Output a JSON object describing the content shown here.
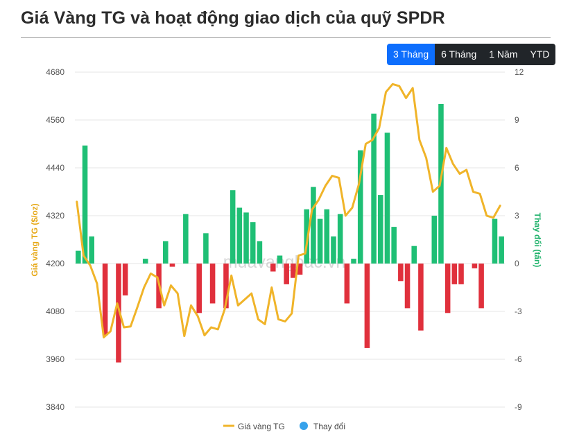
{
  "title": "Giá Vàng TG và hoạt động giao dịch của quỹ SPDR",
  "ranges": [
    "3 Tháng",
    "6 Tháng",
    "1 Năm",
    "YTD"
  ],
  "active_range": "3 Tháng",
  "watermark": "muavangbac.vn",
  "colors": {
    "line": "#f0b429",
    "pos": "#1fbf75",
    "neg": "#e0303c",
    "legend_change": "#36a2eb",
    "left_axis": "#e6a817",
    "right_axis": "#20b26b"
  },
  "chart_data": {
    "type": "bar+line",
    "left_axis": {
      "label": "Giá vàng TG ($/oz)",
      "min": 3840,
      "max": 4680,
      "ticks": [
        "4680",
        "4560",
        "4440",
        "4320",
        "4200",
        "4080",
        "3960",
        "3840"
      ]
    },
    "right_axis": {
      "label": "Thay đổi (tấn)",
      "min": -9,
      "max": 12,
      "ticks": [
        "12",
        "9",
        "6",
        "3",
        "0",
        "-3",
        "-6",
        "-9"
      ]
    },
    "legend": [
      {
        "name": "Giá vàng TG",
        "kind": "line"
      },
      {
        "name": "Thay đổi",
        "kind": "point"
      }
    ],
    "series": [
      {
        "name": "Giá vàng TG",
        "type": "line",
        "values": [
          4355,
          4220,
          4195,
          4150,
          4015,
          4030,
          4100,
          4040,
          4042,
          4090,
          4140,
          4175,
          4165,
          4095,
          4145,
          4125,
          4018,
          4095,
          4068,
          4020,
          4040,
          4035,
          4085,
          4170,
          4095,
          4110,
          4125,
          4060,
          4048,
          4140,
          4060,
          4055,
          4075,
          4220,
          4225,
          4335,
          4360,
          4395,
          4420,
          4415,
          4320,
          4340,
          4400,
          4500,
          4510,
          4540,
          4630,
          4650,
          4645,
          4615,
          4640,
          4510,
          4465,
          4380,
          4395,
          4490,
          4450,
          4425,
          4435,
          4380,
          4375,
          4320,
          4315,
          4345
        ],
        "index": [
          0,
          1,
          2,
          3,
          4,
          5,
          6,
          7,
          8,
          9,
          10,
          11,
          12,
          13,
          14,
          15,
          16,
          17,
          18,
          19,
          20,
          21,
          22,
          23,
          24,
          25,
          26,
          27,
          28,
          29,
          30,
          31,
          32,
          33,
          34,
          35,
          36,
          37,
          38,
          39,
          40,
          41,
          42,
          43,
          44,
          45,
          46,
          47,
          48,
          49,
          50,
          51,
          52,
          53,
          54,
          55,
          56,
          57,
          58,
          59,
          60,
          61,
          62,
          63
        ]
      },
      {
        "name": "Thay đổi",
        "type": "bar",
        "values": [
          0.8,
          7.4,
          1.7,
          0,
          -4.5,
          0,
          -6.2,
          -2.0,
          0,
          0,
          0.3,
          0,
          -2.8,
          1.4,
          -0.2,
          0,
          3.1,
          0,
          -3.1,
          1.9,
          -2.5,
          0,
          -2.8,
          4.6,
          3.5,
          3.2,
          2.6,
          1.4,
          0,
          -0.5,
          0.5,
          -1.3,
          -0.9,
          -0.7,
          3.4,
          4.8,
          2.8,
          3.4,
          1.7,
          3.1,
          -2.5,
          0.3,
          7.1,
          -5.3,
          9.4,
          4.3,
          8.2,
          2.3,
          -1.1,
          -2.8,
          1.1,
          -4.2,
          0,
          3.0,
          10.0,
          -3.1,
          -1.3,
          -1.3,
          0,
          -0.3,
          -2.8,
          0,
          2.8,
          1.7
        ]
      }
    ],
    "grid": true
  }
}
